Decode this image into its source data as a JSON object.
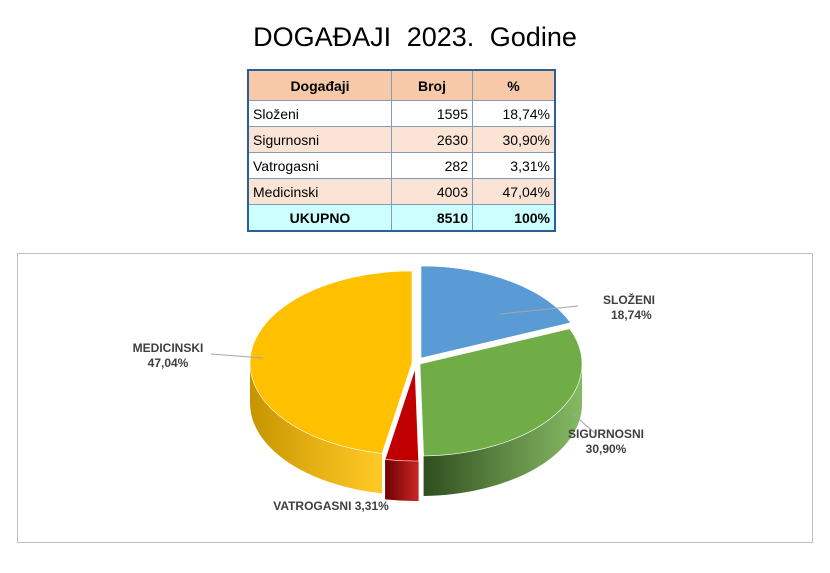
{
  "title": {
    "word1": "DOGAĐAJI",
    "year": "2023.",
    "word2": "Godine"
  },
  "table": {
    "headers": [
      "Događaji",
      "Broj",
      "%"
    ],
    "rows": [
      {
        "name": "Složeni",
        "count": "1595",
        "pct": "18,74%"
      },
      {
        "name": "Sigurnosni",
        "count": "2630",
        "pct": "30,90%"
      },
      {
        "name": "Vatrogasni",
        "count": "282",
        "pct": "3,31%"
      },
      {
        "name": "Medicinski",
        "count": "4003",
        "pct": "47,04%"
      }
    ],
    "total": {
      "name": "UKUPNO",
      "count": "8510",
      "pct": "100%"
    }
  },
  "chart_data": {
    "type": "pie",
    "categories": [
      "SLOŽENI",
      "SIGURNOSNI",
      "VATROGASNI",
      "MEDICINSKI"
    ],
    "values": [
      18.74,
      30.9,
      3.31,
      47.04
    ],
    "value_labels": [
      "18,74%",
      "30,90%",
      "3,31%",
      "47,04%"
    ],
    "colors": [
      "#5b9bd5",
      "#70ad47",
      "#c00000",
      "#ffc000"
    ],
    "side_colors": [
      "#355f8a",
      "#2f4d1f",
      "#6d0000",
      "#c59400"
    ],
    "style": "3d-exploded"
  }
}
